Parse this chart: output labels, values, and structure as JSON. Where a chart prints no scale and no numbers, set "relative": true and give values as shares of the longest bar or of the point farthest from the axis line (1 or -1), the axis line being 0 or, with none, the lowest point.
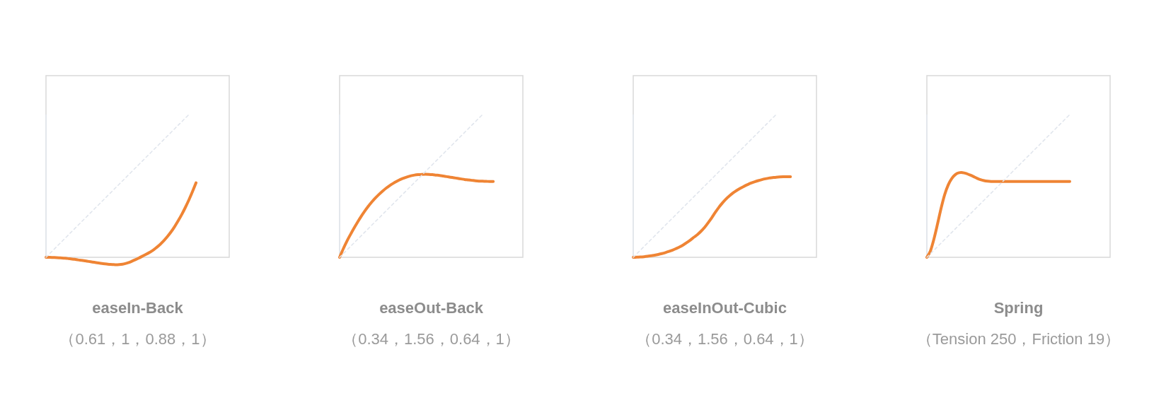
{
  "chart_data": [
    {
      "type": "line",
      "relative": true,
      "title": "easeIn-Back",
      "subtitle": "（0.61，1，0.88，1）",
      "categories": [
        null,
        null,
        null,
        null,
        null,
        null,
        null,
        null,
        null,
        null,
        null,
        null,
        null,
        null,
        null,
        null,
        null,
        null,
        null,
        null,
        null,
        null,
        null,
        null,
        null,
        null,
        null,
        null,
        null,
        null,
        null,
        null,
        null,
        null,
        null,
        null,
        null,
        null,
        null,
        null,
        null,
        null,
        null
      ],
      "series": [
        {
          "color": "#ef8434",
          "values": [
            0,
            0,
            -0.001,
            -0.002,
            -0.004,
            -0.006,
            -0.008,
            -0.011,
            -0.014,
            -0.018,
            -0.021,
            -0.025,
            -0.029,
            -0.033,
            -0.037,
            -0.041,
            -0.044,
            -0.047,
            -0.05,
            -0.051,
            -0.052,
            -0.05,
            -0.045,
            -0.038,
            -0.028,
            -0.017,
            -0.005,
            0.008,
            0.021,
            0.035,
            0.05,
            0.07,
            0.092,
            0.117,
            0.146,
            0.178,
            0.215,
            0.256,
            0.3,
            0.349,
            0.402,
            0.46,
            0.522
          ]
        },
        {
          "color": "#dfe4ec",
          "line_style": "dashed",
          "values": [
            0,
            0.025,
            0.05,
            0.075,
            0.1,
            0.125,
            0.15,
            0.175,
            0.2,
            0.225,
            0.25,
            0.275,
            0.3,
            0.325,
            0.35,
            0.375,
            0.4,
            0.425,
            0.45,
            0.475,
            0.5,
            0.525,
            0.55,
            0.575,
            0.6,
            0.625,
            0.65,
            0.675,
            0.7,
            0.725,
            0.75,
            0.775,
            0.8,
            0.825,
            0.85,
            0.875,
            0.9,
            0.925,
            0.95,
            0.975,
            1,
            null,
            null
          ]
        }
      ]
    },
    {
      "type": "line",
      "relative": true,
      "title": "easeOut-Back",
      "subtitle": "（0.34，1.56，0.64，1）",
      "categories": [
        null,
        null,
        null,
        null,
        null,
        null,
        null,
        null,
        null,
        null,
        null,
        null,
        null,
        null,
        null,
        null,
        null,
        null,
        null,
        null,
        null,
        null,
        null,
        null,
        null,
        null,
        null,
        null,
        null,
        null,
        null,
        null,
        null,
        null,
        null,
        null,
        null,
        null,
        null,
        null,
        null,
        null,
        null,
        null
      ],
      "series": [
        {
          "color": "#ef8434",
          "values": [
            0,
            0.058,
            0.111,
            0.158,
            0.203,
            0.245,
            0.285,
            0.322,
            0.356,
            0.387,
            0.415,
            0.44,
            0.463,
            0.484,
            0.502,
            0.518,
            0.532,
            0.545,
            0.555,
            0.564,
            0.571,
            0.576,
            0.579,
            0.581,
            0.582,
            0.581,
            0.579,
            0.576,
            0.573,
            0.569,
            0.565,
            0.561,
            0.557,
            0.553,
            0.549,
            0.545,
            0.542,
            0.539,
            0.536,
            0.534,
            0.533,
            0.532,
            0.531,
            0.531
          ]
        },
        {
          "color": "#dfe4ec",
          "line_style": "dashed",
          "values": [
            0,
            0.025,
            0.05,
            0.075,
            0.1,
            0.125,
            0.15,
            0.175,
            0.2,
            0.225,
            0.25,
            0.275,
            0.3,
            0.325,
            0.35,
            0.375,
            0.4,
            0.425,
            0.45,
            0.475,
            0.5,
            0.525,
            0.55,
            0.575,
            0.6,
            0.625,
            0.65,
            0.675,
            0.7,
            0.725,
            0.75,
            0.775,
            0.8,
            0.825,
            0.85,
            0.875,
            0.9,
            0.925,
            0.95,
            0.975,
            1,
            null,
            null,
            null
          ]
        }
      ]
    },
    {
      "type": "line",
      "relative": true,
      "title": "easeInOut-Cubic",
      "subtitle": "（0.34，1.56，0.64，1）",
      "categories": [
        null,
        null,
        null,
        null,
        null,
        null,
        null,
        null,
        null,
        null,
        null,
        null,
        null,
        null,
        null,
        null,
        null,
        null,
        null,
        null,
        null,
        null,
        null,
        null,
        null,
        null,
        null,
        null,
        null,
        null,
        null,
        null,
        null,
        null,
        null,
        null,
        null,
        null,
        null,
        null,
        null,
        null,
        null,
        null,
        null
      ],
      "series": [
        {
          "color": "#ef8434",
          "values": [
            0,
            0.001,
            0.002,
            0.004,
            0.007,
            0.011,
            0.015,
            0.02,
            0.026,
            0.033,
            0.041,
            0.05,
            0.061,
            0.073,
            0.087,
            0.103,
            0.121,
            0.141,
            0.16,
            0.183,
            0.21,
            0.243,
            0.278,
            0.316,
            0.351,
            0.382,
            0.409,
            0.432,
            0.452,
            0.469,
            0.484,
            0.497,
            0.509,
            0.52,
            0.529,
            0.537,
            0.544,
            0.55,
            0.555,
            0.558,
            0.561,
            0.563,
            0.564,
            0.564,
            0.564
          ]
        },
        {
          "color": "#dfe4ec",
          "line_style": "dashed",
          "values": [
            0,
            0.025,
            0.05,
            0.075,
            0.1,
            0.125,
            0.15,
            0.175,
            0.2,
            0.225,
            0.25,
            0.275,
            0.3,
            0.325,
            0.35,
            0.375,
            0.4,
            0.425,
            0.45,
            0.475,
            0.5,
            0.525,
            0.55,
            0.575,
            0.6,
            0.625,
            0.65,
            0.675,
            0.7,
            0.725,
            0.75,
            0.775,
            0.8,
            0.825,
            0.85,
            0.875,
            0.9,
            0.925,
            0.95,
            0.975,
            1,
            null,
            null,
            null,
            null
          ]
        }
      ]
    },
    {
      "type": "line",
      "relative": true,
      "title": "Spring",
      "subtitle": "（Tension 250，Friction 19）",
      "categories": [
        null,
        null,
        null,
        null,
        null,
        null,
        null,
        null,
        null,
        null,
        null,
        null,
        null,
        null,
        null,
        null,
        null,
        null,
        null,
        null,
        null,
        null,
        null,
        null,
        null,
        null,
        null,
        null,
        null,
        null,
        null,
        null,
        null,
        null,
        null,
        null,
        null,
        null,
        null,
        null,
        null
      ],
      "series": [
        {
          "color": "#ef8434",
          "values": [
            0,
            0.045,
            0.13,
            0.235,
            0.345,
            0.44,
            0.508,
            0.553,
            0.58,
            0.592,
            0.593,
            0.587,
            0.577,
            0.566,
            0.554,
            0.544,
            0.537,
            0.533,
            0.531,
            0.531,
            0.531,
            0.531,
            0.531,
            0.531,
            0.531,
            0.531,
            0.531,
            0.531,
            0.531,
            0.531,
            0.531,
            0.531,
            0.531,
            0.531,
            0.531,
            0.531,
            0.531,
            0.531,
            0.531,
            0.531,
            0.531
          ]
        },
        {
          "color": "#dfe4ec",
          "line_style": "dashed",
          "values": [
            0,
            0.025,
            0.05,
            0.075,
            0.1,
            0.125,
            0.15,
            0.175,
            0.2,
            0.225,
            0.25,
            0.275,
            0.3,
            0.325,
            0.35,
            0.375,
            0.4,
            0.425,
            0.45,
            0.475,
            0.5,
            0.525,
            0.55,
            0.575,
            0.6,
            0.625,
            0.65,
            0.675,
            0.7,
            0.725,
            0.75,
            0.775,
            0.8,
            0.825,
            0.85,
            0.875,
            0.9,
            0.925,
            0.95,
            0.975,
            1
          ]
        }
      ]
    }
  ]
}
